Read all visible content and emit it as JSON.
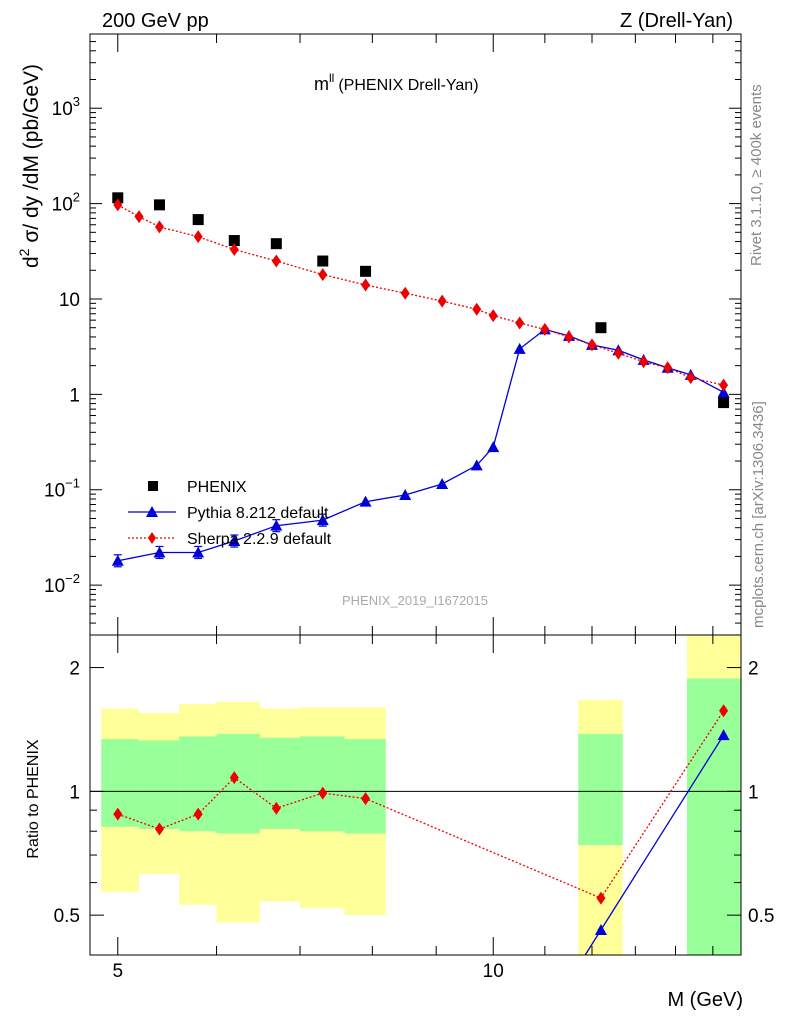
{
  "header": {
    "left_label": "200 GeV pp",
    "right_label": "Z (Drell-Yan)"
  },
  "side_labels": {
    "rivet": "Rivet 3.1.10, ≥ 400k events",
    "mcplots": "mcplots.cern.ch [arXiv:1306.3436]"
  },
  "chart_data": [
    {
      "type": "scatter",
      "title": "mᴸᴸ (PHENIX Drell-Yan)",
      "title_main": "m",
      "title_sup": "ll",
      "title_rest": "(PHENIX Drell-Yan)",
      "analysis_id": "PHENIX_2019_I1672015",
      "xscale": "log",
      "yscale": "log",
      "xlim": [
        4.75,
        15.8
      ],
      "ylim": [
        0.003,
        6000
      ],
      "ylabel": "d² σ/ dy /dM (pb/GeV)",
      "ylabel_parts": {
        "a": "d",
        "sup": "2",
        "b": " σ/ dy /dM (pb/GeV)"
      },
      "y_ticks": [
        {
          "value": 0.01,
          "label": "10",
          "sup": "−2"
        },
        {
          "value": 0.1,
          "label": "10",
          "sup": "−1"
        },
        {
          "value": 1,
          "label": "1",
          "sup": ""
        },
        {
          "value": 10,
          "label": "10",
          "sup": ""
        },
        {
          "value": 100,
          "label": "10",
          "sup": "2"
        },
        {
          "value": 1000,
          "label": "10",
          "sup": "3"
        }
      ],
      "legend": {
        "placement": "bottom-left",
        "entries": [
          {
            "name": "PHENIX",
            "marker": "square",
            "color": "#000000"
          },
          {
            "name": "Pythia 8.212 default",
            "marker": "triangle",
            "color": "#0000d8"
          },
          {
            "name": "Sherpa 2.2.9 default",
            "marker": "diamond",
            "color": "#ee0000"
          }
        ]
      },
      "series": [
        {
          "name": "PHENIX",
          "marker": "square",
          "color": "#000000",
          "x": [
            5.0,
            5.4,
            5.8,
            6.2,
            6.7,
            7.3,
            7.9,
            12.2,
            15.3
          ],
          "y": [
            115,
            97,
            68,
            41,
            38,
            25,
            19.5,
            5.0,
            0.82
          ]
        },
        {
          "name": "Pythia 8.212 default",
          "marker": "triangle",
          "color": "#0000d8",
          "line": "solid",
          "x": [
            5.0,
            5.4,
            5.8,
            6.2,
            6.7,
            7.3,
            7.9,
            8.5,
            9.1,
            9.7,
            10.0,
            10.5,
            11.0,
            11.5,
            12.0,
            12.6,
            13.2,
            13.8,
            14.4,
            15.3
          ],
          "y": [
            0.018,
            0.022,
            0.022,
            0.029,
            0.042,
            0.048,
            0.075,
            0.088,
            0.115,
            0.18,
            0.28,
            3.0,
            4.8,
            4.1,
            3.3,
            2.9,
            2.3,
            1.9,
            1.6,
            1.05
          ]
        },
        {
          "name": "Sherpa 2.2.9 default",
          "marker": "diamond",
          "color": "#ee0000",
          "line": "dotted",
          "x": [
            5.0,
            5.2,
            5.4,
            5.8,
            6.2,
            6.7,
            7.3,
            7.9,
            8.5,
            9.1,
            9.7,
            10.0,
            10.5,
            11.0,
            11.5,
            12.0,
            12.6,
            13.2,
            13.8,
            14.4,
            15.3
          ],
          "y": [
            97,
            73,
            57,
            45,
            33,
            25,
            18,
            14,
            11.5,
            9.5,
            7.8,
            6.7,
            5.6,
            4.8,
            4.0,
            3.3,
            2.7,
            2.2,
            1.9,
            1.5,
            1.25
          ]
        }
      ]
    },
    {
      "type": "scatter",
      "ylabel": "Ratio to PHENIX",
      "xlabel": "M (GeV)",
      "xscale": "log",
      "yscale": "log",
      "xlim": [
        4.75,
        15.8
      ],
      "ylim": [
        0.4,
        2.4
      ],
      "reference_line": 1,
      "y_ticks": [
        {
          "value": 0.5,
          "label": "0.5"
        },
        {
          "value": 1,
          "label": "1"
        },
        {
          "value": 2,
          "label": "2"
        }
      ],
      "x_ticks": [
        {
          "value": 5,
          "label": "5"
        },
        {
          "value": 10,
          "label": "10"
        }
      ],
      "bands": [
        {
          "x": [
            4.85,
            5.2
          ],
          "green": [
            0.82,
            1.34
          ],
          "yellow": [
            0.57,
            1.59
          ]
        },
        {
          "x": [
            5.2,
            5.6
          ],
          "green": [
            0.81,
            1.33
          ],
          "yellow": [
            0.63,
            1.55
          ]
        },
        {
          "x": [
            5.6,
            6.0
          ],
          "green": [
            0.8,
            1.36
          ],
          "yellow": [
            0.53,
            1.63
          ]
        },
        {
          "x": [
            6.0,
            6.5
          ],
          "green": [
            0.79,
            1.38
          ],
          "yellow": [
            0.48,
            1.65
          ]
        },
        {
          "x": [
            6.5,
            7.0
          ],
          "green": [
            0.81,
            1.35
          ],
          "yellow": [
            0.54,
            1.59
          ]
        },
        {
          "x": [
            7.0,
            7.6
          ],
          "green": [
            0.8,
            1.36
          ],
          "yellow": [
            0.52,
            1.6
          ]
        },
        {
          "x": [
            7.6,
            8.2
          ],
          "green": [
            0.79,
            1.34
          ],
          "yellow": [
            0.5,
            1.6
          ]
        },
        {
          "x": [
            11.7,
            12.7
          ],
          "green": [
            0.74,
            1.38
          ],
          "yellow": [
            0.38,
            1.67
          ]
        },
        {
          "x": [
            14.3,
            16.0
          ],
          "green": [
            0.38,
            1.88
          ],
          "yellow": [
            0.38,
            2.5
          ]
        }
      ],
      "series": [
        {
          "name": "Pythia 8.212 default",
          "marker": "triangle",
          "color": "#0000d8",
          "line": "solid",
          "x": [
            12.2,
            15.3
          ],
          "y": [
            0.46,
            1.37
          ]
        },
        {
          "name": "Sherpa 2.2.9 default",
          "marker": "diamond",
          "color": "#ee0000",
          "line": "dotted",
          "x": [
            5.0,
            5.4,
            5.8,
            6.2,
            6.7,
            7.3,
            7.9,
            12.2,
            15.3
          ],
          "y": [
            0.88,
            0.81,
            0.88,
            1.08,
            0.91,
            0.99,
            0.96,
            0.55,
            1.57
          ]
        }
      ]
    }
  ]
}
